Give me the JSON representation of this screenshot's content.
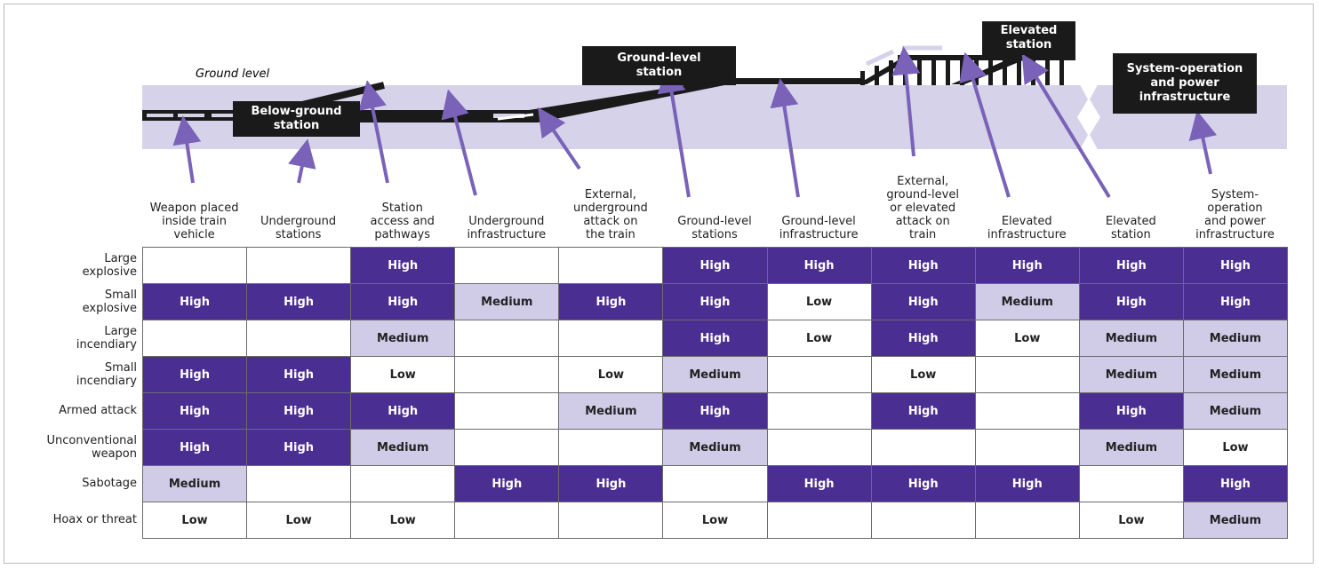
{
  "diagram": {
    "ground_label": "Ground level",
    "stations": [
      "Below-ground\nstation",
      "Ground-level\nstation",
      "Elevated\nstation",
      "System-operation\nand power\ninfrastructure"
    ]
  },
  "table": {
    "columns": [
      "Weapon placed\ninside train\nvehicle",
      "Underground\nstations",
      "Station\naccess and\npathways",
      "Underground\ninfrastructure",
      "External,\nunderground\nattack on\nthe train",
      "Ground-level\nstations",
      "Ground-level\ninfrastructure",
      "External,\nground-level\nor elevated\nattack on\ntrain",
      "Elevated\ninfrastructure",
      "Elevated\nstation",
      "System-\noperation\nand power\ninfrastructure"
    ],
    "rows": [
      {
        "label": "Large\nexplosive",
        "cells": [
          null,
          null,
          "High",
          null,
          null,
          "High",
          "High",
          "High",
          "High",
          "High",
          "High"
        ]
      },
      {
        "label": "Small\nexplosive",
        "cells": [
          "High",
          "High",
          "High",
          "Medium",
          "High",
          "High",
          "Low",
          "High",
          "Medium",
          "High",
          "High"
        ]
      },
      {
        "label": "Large\nincendiary",
        "cells": [
          null,
          null,
          "Medium",
          null,
          null,
          "High",
          "Low",
          "High",
          "Low",
          "Medium",
          "Medium"
        ]
      },
      {
        "label": "Small\nincendiary",
        "cells": [
          "High",
          "High",
          "Low",
          null,
          "Low",
          "Medium",
          null,
          "Low",
          null,
          "Medium",
          "Medium"
        ]
      },
      {
        "label": "Armed attack",
        "cells": [
          "High",
          "High",
          "High",
          null,
          "Medium",
          "High",
          null,
          "High",
          null,
          "High",
          "Medium"
        ]
      },
      {
        "label": "Unconventional\nweapon",
        "cells": [
          "High",
          "High",
          "Medium",
          null,
          null,
          "Medium",
          null,
          null,
          null,
          "Medium",
          "Low"
        ]
      },
      {
        "label": "Sabotage",
        "cells": [
          "Medium",
          null,
          null,
          "High",
          "High",
          null,
          "High",
          "High",
          "High",
          null,
          "High"
        ]
      },
      {
        "label": "Hoax or threat",
        "cells": [
          "Low",
          "Low",
          "Low",
          null,
          null,
          "Low",
          null,
          null,
          null,
          "Low",
          "Medium"
        ]
      }
    ]
  }
}
